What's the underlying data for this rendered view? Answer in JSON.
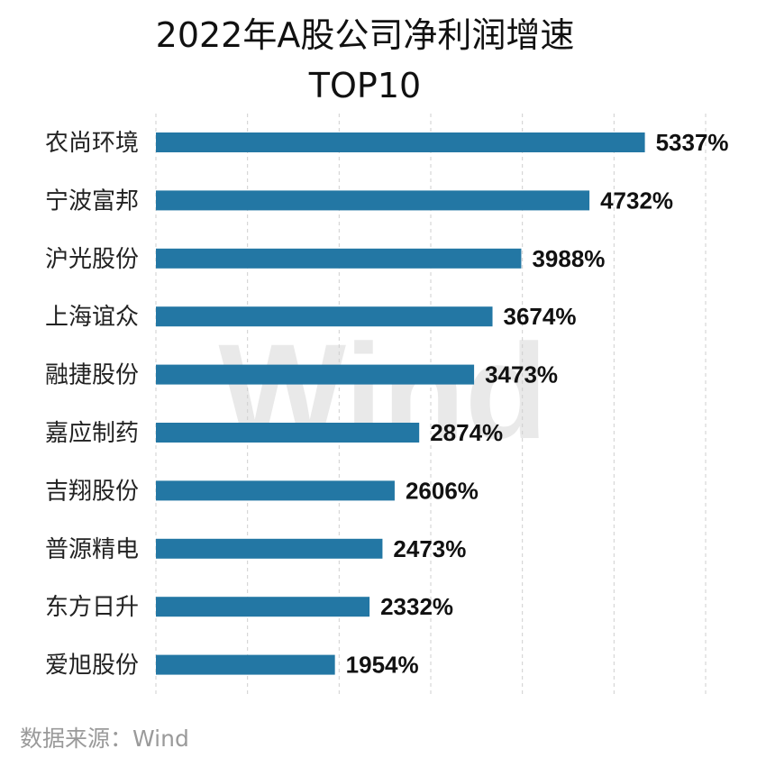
{
  "chart_data": {
    "type": "bar",
    "orientation": "horizontal",
    "title": [
      "2022年A股公司净利润增速",
      "TOP10"
    ],
    "categories": [
      "农尚环境",
      "宁波富邦",
      "沪光股份",
      "上海谊众",
      "融捷股份",
      "嘉应制药",
      "吉翔股份",
      "普源精电",
      "东方日升",
      "爱旭股份"
    ],
    "values": [
      5337,
      4732,
      3988,
      3674,
      3473,
      2874,
      2606,
      2473,
      2332,
      1954
    ],
    "value_labels": [
      "5337%",
      "4732%",
      "3988%",
      "3674%",
      "3473%",
      "2874%",
      "2606%",
      "2473%",
      "2332%",
      "1954%"
    ],
    "unit": "%",
    "xlim": [
      0,
      6000
    ],
    "grid": "vertical dashed",
    "bar_color": "#2377a4"
  },
  "source": "数据来源：Wind",
  "watermark": "Wind"
}
